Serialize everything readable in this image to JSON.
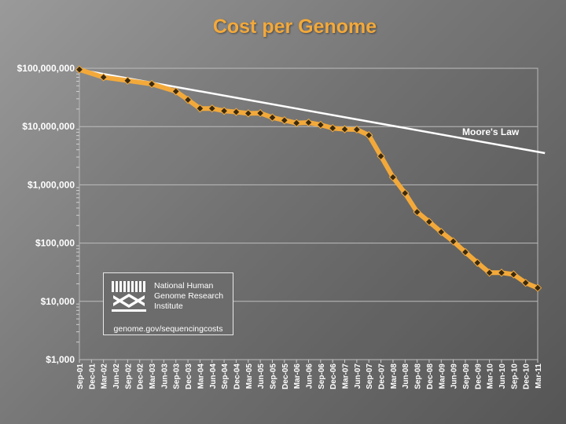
{
  "chart_data": {
    "type": "line",
    "title": "Cost per Genome",
    "yscale": "log",
    "ylim": [
      1000,
      100000000
    ],
    "y_ticks": [
      {
        "value": 100000000,
        "label": "$100,000,000"
      },
      {
        "value": 10000000,
        "label": "$10,000,000"
      },
      {
        "value": 1000000,
        "label": "$1,000,000"
      },
      {
        "value": 100000,
        "label": "$100,000"
      },
      {
        "value": 10000,
        "label": "$10,000"
      },
      {
        "value": 1000,
        "label": "$1,000"
      }
    ],
    "x_ticks": [
      "Sep-01",
      "Dec-01",
      "Mar-02",
      "Jun-02",
      "Sep-02",
      "Dec-02",
      "Mar-03",
      "Jun-03",
      "Sep-03",
      "Dec-03",
      "Mar-04",
      "Jun-04",
      "Sep-04",
      "Dec-04",
      "Mar-05",
      "Jun-05",
      "Sep-05",
      "Dec-05",
      "Mar-06",
      "Jun-06",
      "Sep-06",
      "Dec-06",
      "Mar-07",
      "Jun-07",
      "Sep-07",
      "Dec-07",
      "Mar-08",
      "Jun-08",
      "Sep-08",
      "Dec-08",
      "Mar-09",
      "Jun-09",
      "Sep-09",
      "Dec-09",
      "Mar-10",
      "Jun-10",
      "Sep-10",
      "Dec-10",
      "Mar-11"
    ],
    "series": [
      {
        "name": "Cost per Genome",
        "color": "#f3a93a",
        "marker_color": "#3a2a10",
        "points": [
          {
            "t": 0,
            "value": 95263072
          },
          {
            "t": 2,
            "value": 70175437
          },
          {
            "t": 4,
            "value": 61448422
          },
          {
            "t": 6,
            "value": 53751684
          },
          {
            "t": 8,
            "value": 40157554
          },
          {
            "t": 9,
            "value": 28780376
          },
          {
            "t": 10,
            "value": 20442576
          },
          {
            "t": 11,
            "value": 20445781
          },
          {
            "t": 12,
            "value": 18573788
          },
          {
            "t": 13,
            "value": 17793457
          },
          {
            "t": 14,
            "value": 16860000
          },
          {
            "t": 15,
            "value": 17000000
          },
          {
            "t": 16,
            "value": 14300000
          },
          {
            "t": 17,
            "value": 12800000
          },
          {
            "t": 18,
            "value": 11500000
          },
          {
            "t": 19,
            "value": 11700000
          },
          {
            "t": 20,
            "value": 10700000
          },
          {
            "t": 21,
            "value": 9400000
          },
          {
            "t": 22,
            "value": 9000000
          },
          {
            "t": 23,
            "value": 8900000
          },
          {
            "t": 24,
            "value": 7100000
          },
          {
            "t": 25,
            "value": 3100000
          },
          {
            "t": 26,
            "value": 1350000
          },
          {
            "t": 27,
            "value": 720000
          },
          {
            "t": 28,
            "value": 342000
          },
          {
            "t": 29,
            "value": 232000
          },
          {
            "t": 30,
            "value": 155000
          },
          {
            "t": 31,
            "value": 107000
          },
          {
            "t": 32,
            "value": 70000
          },
          {
            "t": 33,
            "value": 46000
          },
          {
            "t": 34,
            "value": 31000
          },
          {
            "t": 35,
            "value": 31000
          },
          {
            "t": 36,
            "value": 29000
          },
          {
            "t": 37,
            "value": 20800
          },
          {
            "t": 38,
            "value": 17000
          }
        ]
      },
      {
        "name": "Moore's Law",
        "label": "Moore's Law",
        "color": "#ffffff",
        "points": [
          {
            "t": 0,
            "value": 95000000
          },
          {
            "t": 38.6,
            "value": 3500000
          }
        ]
      }
    ]
  },
  "logo": {
    "lines": [
      "National Human",
      "Genome Research",
      "Institute"
    ],
    "url": "genome.gov/sequencingcosts"
  }
}
